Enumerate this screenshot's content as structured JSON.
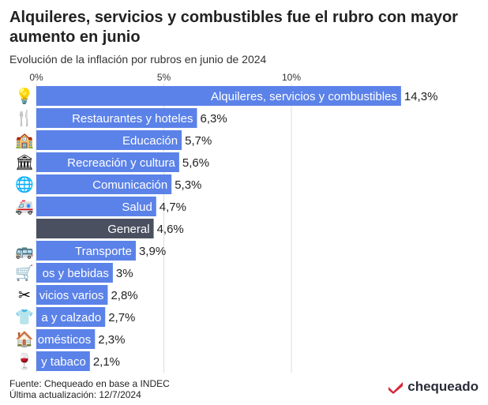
{
  "title": "Alquileres, servicios y combustibles fue el rubro con mayor aumento en junio",
  "subtitle": "Evolución de la inflación por rubros en junio de 2024",
  "chart_data": {
    "type": "bar",
    "orientation": "horizontal",
    "xlim": [
      0,
      15
    ],
    "ticks": [
      {
        "value": 0,
        "label": "0%"
      },
      {
        "value": 5,
        "label": "5%"
      },
      {
        "value": 10,
        "label": "10%"
      }
    ],
    "grid": true,
    "legend": "none",
    "colors": {
      "bar": "#5b82e8",
      "highlight": "#4a5060",
      "grid": "#dddddd"
    },
    "categories": [
      {
        "label": "Alquileres, servicios y combustibles",
        "value": 14.3,
        "value_label": "14,3%",
        "icon": "lightbulb-icon",
        "glyph": "💡",
        "highlight": false
      },
      {
        "label": "Restaurantes y hoteles",
        "value": 6.3,
        "value_label": "6,3%",
        "icon": "fork-knife-icon",
        "glyph": "🍴",
        "highlight": false
      },
      {
        "label": "Educación",
        "value": 5.7,
        "value_label": "5,7%",
        "icon": "school-icon",
        "glyph": "🏫",
        "highlight": false
      },
      {
        "label": "Recreación y cultura",
        "value": 5.6,
        "value_label": "5,6%",
        "icon": "museum-icon",
        "glyph": "🏛",
        "highlight": false
      },
      {
        "label": "Comunicación",
        "value": 5.3,
        "value_label": "5,3%",
        "icon": "globe-icon",
        "glyph": "🌐",
        "highlight": false
      },
      {
        "label": "Salud",
        "value": 4.7,
        "value_label": "4,7%",
        "icon": "ambulance-icon",
        "glyph": "🚑",
        "highlight": false
      },
      {
        "label": "General",
        "value": 4.6,
        "value_label": "4,6%",
        "icon": "",
        "glyph": "",
        "highlight": true
      },
      {
        "label": "Transporte",
        "value": 3.9,
        "value_label": "3,9%",
        "icon": "bus-icon",
        "glyph": "🚌",
        "highlight": false
      },
      {
        "label": "os y bebidas",
        "value": 3.0,
        "value_label": "3%",
        "icon": "shopping-cart-icon",
        "glyph": "🛒",
        "highlight": false
      },
      {
        "label": "vicios varios",
        "value": 2.8,
        "value_label": "2,8%",
        "icon": "scissors-icon",
        "glyph": "✂",
        "highlight": false
      },
      {
        "label": "a y calzado",
        "value": 2.7,
        "value_label": "2,7%",
        "icon": "tshirt-icon",
        "glyph": "👕",
        "highlight": false
      },
      {
        "label": "omésticos",
        "value": 2.3,
        "value_label": "2,3%",
        "icon": "house-icon",
        "glyph": "🏠",
        "highlight": false
      },
      {
        "label": "y tabaco",
        "value": 2.1,
        "value_label": "2,1%",
        "icon": "wine-glass-icon",
        "glyph": "🍷",
        "highlight": false
      }
    ]
  },
  "footer": {
    "source": "Fuente: Chequeado en base a INDEC",
    "updated": "Última actualización: 12/7/2024"
  },
  "logo": {
    "text": "chequeado",
    "icon": "chequeado-logo-icon",
    "color": "#d6263a"
  }
}
